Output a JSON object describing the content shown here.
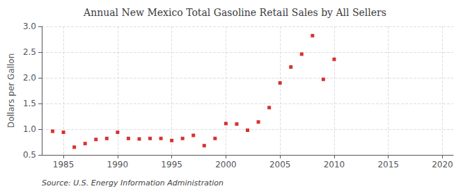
{
  "chart_data": {
    "type": "scatter",
    "title": "Annual New Mexico Total Gasoline Retail Sales by All Sellers",
    "ylabel": "Dollars per Gallon",
    "annotations": [
      "Source: U.S. Energy Information Administration"
    ],
    "x": [
      1984,
      1985,
      1986,
      1987,
      1988,
      1989,
      1990,
      1991,
      1992,
      1993,
      1994,
      1995,
      1996,
      1997,
      1998,
      1999,
      2000,
      2001,
      2002,
      2003,
      2004,
      2005,
      2006,
      2007,
      2008,
      2009,
      2010
    ],
    "values": [
      0.96,
      0.94,
      0.65,
      0.72,
      0.8,
      0.82,
      0.94,
      0.82,
      0.81,
      0.82,
      0.82,
      0.78,
      0.82,
      0.88,
      0.68,
      0.82,
      1.11,
      1.1,
      0.98,
      1.14,
      1.42,
      1.9,
      2.21,
      2.46,
      2.82,
      1.97,
      2.36
    ],
    "color": "#cc0000",
    "marker": "square",
    "xlim": [
      1983,
      2021
    ],
    "xticks": [
      1985,
      1990,
      1995,
      2000,
      2005,
      2010,
      2015,
      2020
    ],
    "ylim": [
      0.5,
      3.0
    ],
    "yticks": [
      0.5,
      {
        "value": 1,
        "label": "1.0"
      },
      1.5,
      {
        "value": 2,
        "label": "2.0"
      },
      2.5,
      {
        "value": 3,
        "label": "3.0"
      }
    ],
    "grid": true
  }
}
